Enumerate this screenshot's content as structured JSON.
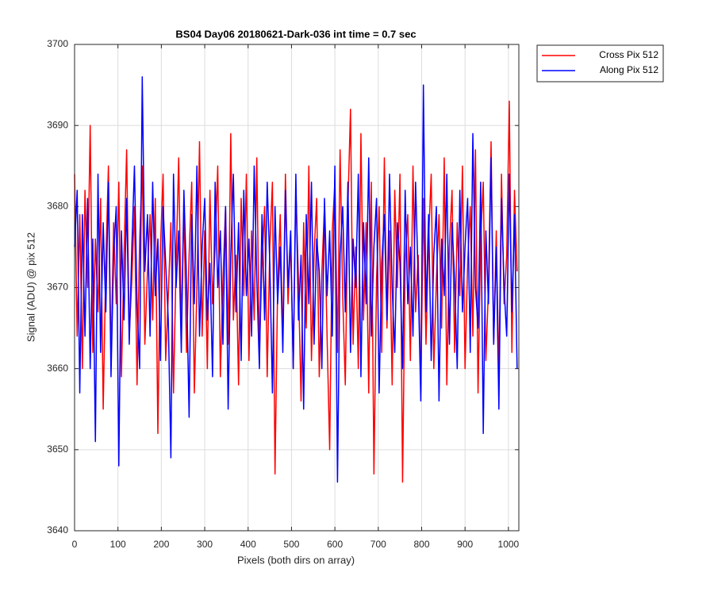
{
  "chart_data": {
    "type": "line",
    "title": "BS04 Day06 20180621-Dark-036 int time = 0.7 sec",
    "x_label": "Pixels (both dirs on array)",
    "y_label": "Signal (ADU) @ pix 512",
    "xlim": [
      0,
      1024
    ],
    "ylim": [
      3640,
      3700
    ],
    "xticks": [
      0,
      100,
      200,
      300,
      400,
      500,
      600,
      700,
      800,
      900,
      1000
    ],
    "yticks": [
      3640,
      3650,
      3660,
      3670,
      3680,
      3690,
      3700
    ],
    "grid": true,
    "legend": "outside-top-right",
    "x": [
      0,
      6,
      12,
      18,
      24,
      30,
      36,
      42,
      48,
      54,
      60,
      66,
      72,
      78,
      84,
      90,
      96,
      102,
      108,
      114,
      120,
      126,
      132,
      138,
      144,
      150,
      156,
      162,
      168,
      174,
      180,
      186,
      192,
      198,
      204,
      210,
      216,
      222,
      228,
      234,
      240,
      246,
      252,
      258,
      264,
      270,
      276,
      282,
      288,
      294,
      300,
      306,
      312,
      318,
      324,
      330,
      336,
      342,
      348,
      354,
      360,
      366,
      372,
      378,
      384,
      390,
      396,
      402,
      408,
      414,
      420,
      426,
      432,
      438,
      444,
      450,
      456,
      462,
      468,
      474,
      480,
      486,
      492,
      498,
      504,
      510,
      516,
      522,
      528,
      534,
      540,
      546,
      552,
      558,
      564,
      570,
      576,
      582,
      588,
      594,
      600,
      606,
      612,
      618,
      624,
      630,
      636,
      642,
      648,
      654,
      660,
      666,
      672,
      678,
      684,
      690,
      696,
      702,
      708,
      714,
      720,
      726,
      732,
      738,
      744,
      750,
      756,
      762,
      768,
      774,
      780,
      786,
      792,
      798,
      804,
      810,
      816,
      822,
      828,
      834,
      840,
      846,
      852,
      858,
      864,
      870,
      876,
      882,
      888,
      894,
      900,
      906,
      912,
      918,
      924,
      930,
      936,
      942,
      948,
      954,
      960,
      966,
      972,
      978,
      984,
      990,
      996,
      1002,
      1008,
      1014,
      1020
    ],
    "series": [
      {
        "name": "Cross Pix 512",
        "color": "#ff0000",
        "values": [
          3684,
          3664,
          3679,
          3660,
          3682,
          3670,
          3690,
          3662,
          3676,
          3667,
          3681,
          3655,
          3673,
          3685,
          3661,
          3678,
          3668,
          3683,
          3659,
          3674,
          3687,
          3664,
          3671,
          3680,
          3658,
          3676,
          3685,
          3663,
          3672,
          3679,
          3666,
          3681,
          3652,
          3675,
          3684,
          3661,
          3669,
          3678,
          3657,
          3673,
          3686,
          3665,
          3680,
          3662,
          3674,
          3683,
          3657,
          3670,
          3688,
          3664,
          3677,
          3660,
          3682,
          3668,
          3675,
          3685,
          3659,
          3671,
          3680,
          3663,
          3689,
          3666,
          3674,
          3658,
          3681,
          3669,
          3684,
          3661,
          3677,
          3666,
          3686,
          3662,
          3673,
          3680,
          3659,
          3675,
          3683,
          3647,
          3670,
          3679,
          3663,
          3684,
          3668,
          3676,
          3660,
          3682,
          3671,
          3656,
          3678,
          3665,
          3685,
          3661,
          3674,
          3681,
          3659,
          3672,
          3680,
          3664,
          3650,
          3677,
          3683,
          3662,
          3687,
          3669,
          3658,
          3680,
          3692,
          3663,
          3675,
          3660,
          3689,
          3666,
          3678,
          3657,
          3683,
          3647,
          3671,
          3680,
          3662,
          3686,
          3665,
          3677,
          3658,
          3682,
          3670,
          3684,
          3646,
          3673,
          3679,
          3661,
          3685,
          3667,
          3674,
          3657,
          3681,
          3663,
          3676,
          3684,
          3660,
          3671,
          3679,
          3665,
          3686,
          3658,
          3675,
          3682,
          3662,
          3678,
          3669,
          3685,
          3660,
          3673,
          3680,
          3664,
          3687,
          3657,
          3676,
          3683,
          3661,
          3670,
          3688,
          3663,
          3677,
          3659,
          3684,
          3668,
          3674,
          3693,
          3662,
          3682,
          3672
        ]
      },
      {
        "name": "Along Pix 512",
        "color": "#0000ff",
        "values": [
          3675,
          3682,
          3657,
          3679,
          3664,
          3681,
          3660,
          3676,
          3651,
          3684,
          3662,
          3678,
          3667,
          3683,
          3659,
          3674,
          3680,
          3648,
          3677,
          3666,
          3681,
          3663,
          3675,
          3685,
          3668,
          3660,
          3696,
          3672,
          3679,
          3664,
          3683,
          3669,
          3676,
          3661,
          3680,
          3673,
          3666,
          3649,
          3684,
          3670,
          3677,
          3662,
          3682,
          3671,
          3654,
          3679,
          3668,
          3685,
          3664,
          3675,
          3681,
          3666,
          3673,
          3659,
          3683,
          3670,
          3677,
          3663,
          3680,
          3655,
          3674,
          3684,
          3667,
          3678,
          3661,
          3682,
          3669,
          3676,
          3664,
          3685,
          3671,
          3660,
          3679,
          3666,
          3683,
          3673,
          3657,
          3680,
          3668,
          3675,
          3662,
          3682,
          3670,
          3677,
          3660,
          3684,
          3666,
          3674,
          3655,
          3679,
          3668,
          3683,
          3663,
          3676,
          3672,
          3660,
          3681,
          3669,
          3677,
          3664,
          3685,
          3646,
          3674,
          3680,
          3667,
          3683,
          3662,
          3676,
          3670,
          3684,
          3659,
          3678,
          3668,
          3686,
          3664,
          3675,
          3681,
          3657,
          3673,
          3679,
          3666,
          3684,
          3670,
          3662,
          3678,
          3673,
          3660,
          3682,
          3668,
          3675,
          3664,
          3683,
          3671,
          3656,
          3695,
          3667,
          3679,
          3661,
          3674,
          3680,
          3656,
          3676,
          3669,
          3684,
          3663,
          3678,
          3671,
          3660,
          3682,
          3667,
          3675,
          3681,
          3662,
          3689,
          3670,
          3665,
          3683,
          3652,
          3677,
          3668,
          3686,
          3663,
          3675,
          3655,
          3681,
          3670,
          3664,
          3684,
          3667,
          3679,
          3660
        ]
      }
    ]
  }
}
